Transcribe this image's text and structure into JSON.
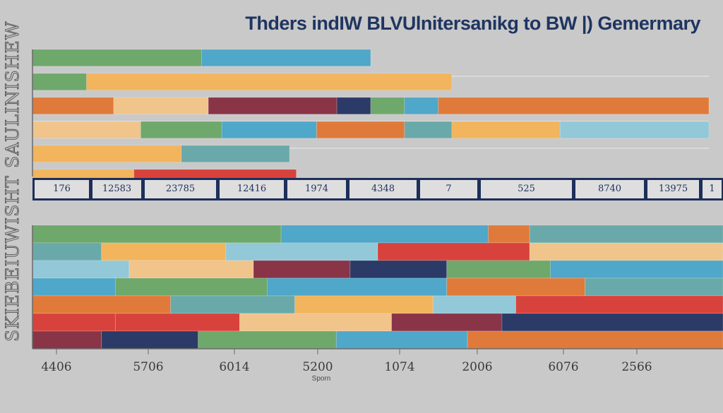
{
  "title": "Thders indIW BLVUlnitersanikg  to BW |) Gemermary",
  "ylabel_top": "SAULINISHEW",
  "ylabel_bottom": "SKIEBEIUWISHT",
  "strip_labels": [
    "176",
    "12583",
    "23785",
    "12416",
    "1974",
    "4348",
    "7",
    "525",
    "8740",
    "13975",
    "1"
  ],
  "xlabel": "Sporn",
  "colors": {
    "green": "#6ea86b",
    "orange": "#e07a3a",
    "peach": "#f0c48a",
    "yellow": "#f2b45c",
    "blue": "#4fa7c9",
    "lightblue": "#92c8d8",
    "teal": "#6aa9a9",
    "red": "#d8423c",
    "maroon": "#8a3448",
    "navy": "#2b3a66",
    "white": "#ffffff"
  },
  "chart_data": [
    {
      "type": "bar",
      "orientation": "horizontal",
      "stacked": true,
      "panel": "top",
      "series": [
        {
          "color": "green",
          "segments": [
            [
              0.0,
              0.25
            ],
            [
              0.25,
              0.5
            ]
          ]
        },
        {
          "color": "green",
          "segments": [
            [
              0.0,
              0.08
            ],
            [
              0.08,
              0.62
            ]
          ]
        },
        {
          "color": "orange",
          "segments": [
            [
              0.0,
              0.12
            ],
            [
              0.12,
              0.26
            ],
            [
              0.26,
              0.45
            ],
            [
              0.45,
              0.5
            ],
            [
              0.5,
              0.55
            ],
            [
              0.55,
              0.6
            ],
            [
              0.6,
              1.0
            ]
          ]
        },
        {
          "color": "peach",
          "segments": [
            [
              0.0,
              0.16
            ],
            [
              0.16,
              0.28
            ],
            [
              0.28,
              0.42
            ],
            [
              0.42,
              0.55
            ],
            [
              0.55,
              0.62
            ],
            [
              0.62,
              0.78
            ],
            [
              0.78,
              1.0
            ]
          ]
        },
        {
          "color": "yellow",
          "segments": [
            [
              0.0,
              0.22
            ],
            [
              0.22,
              0.38
            ]
          ]
        },
        {
          "color": "yellow",
          "segments": [
            [
              0.0,
              0.15
            ],
            [
              0.15,
              0.39
            ]
          ]
        }
      ]
    },
    {
      "type": "bar",
      "orientation": "horizontal",
      "stacked": true,
      "panel": "bottom",
      "series": [
        {
          "color": "green",
          "segments": [
            [
              0.0,
              0.36
            ],
            [
              0.36,
              0.66
            ],
            [
              0.66,
              0.72
            ],
            [
              0.72,
              1.0
            ]
          ]
        },
        {
          "color": "teal",
          "segments": [
            [
              0.0,
              0.1
            ],
            [
              0.1,
              0.28
            ],
            [
              0.28,
              0.5
            ],
            [
              0.5,
              0.72
            ],
            [
              0.72,
              1.0
            ]
          ]
        },
        {
          "color": "lightblue",
          "segments": [
            [
              0.0,
              0.14
            ],
            [
              0.14,
              0.32
            ],
            [
              0.32,
              0.46
            ],
            [
              0.46,
              0.6
            ],
            [
              0.6,
              0.75
            ],
            [
              0.75,
              1.0
            ]
          ]
        },
        {
          "color": "blue",
          "segments": [
            [
              0.0,
              0.12
            ],
            [
              0.12,
              0.34
            ],
            [
              0.34,
              0.6
            ],
            [
              0.6,
              0.8
            ],
            [
              0.8,
              1.0
            ]
          ]
        },
        {
          "color": "orange",
          "segments": [
            [
              0.0,
              0.2
            ],
            [
              0.2,
              0.38
            ],
            [
              0.38,
              0.58
            ],
            [
              0.58,
              0.7
            ],
            [
              0.7,
              1.0
            ]
          ]
        },
        {
          "color": "red",
          "segments": [
            [
              0.0,
              0.12
            ],
            [
              0.12,
              0.3
            ],
            [
              0.3,
              0.52
            ],
            [
              0.52,
              0.68
            ],
            [
              0.68,
              1.0
            ]
          ]
        },
        {
          "color": "maroon",
          "segments": [
            [
              0.0,
              0.1
            ],
            [
              0.1,
              0.24
            ],
            [
              0.24,
              0.44
            ],
            [
              0.44,
              0.63
            ],
            [
              0.63,
              1.0
            ]
          ]
        }
      ]
    }
  ]
}
